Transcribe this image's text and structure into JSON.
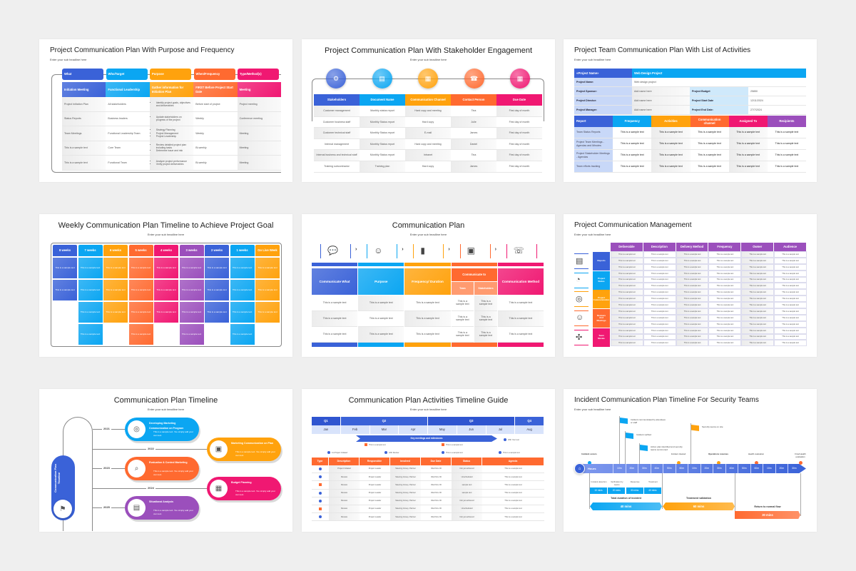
{
  "colors": {
    "blue": "#3a62d8",
    "sky": "#0ba6f2",
    "orange": "#ffa20d",
    "coral": "#ff6a30",
    "pink": "#f01872",
    "purple": "#9b4fbc",
    "lightblue": "#c8d8f8"
  },
  "slides": [
    {
      "title": "Project Communication Plan With Purpose and Frequency",
      "subtitle": "Enter your sub headline here",
      "headers": [
        "What",
        "Who/Target",
        "Purpose",
        "When/Frequency",
        "Type/Method(s)"
      ],
      "lead_row": [
        "Initiation Meeting",
        "Functional Leadership",
        "Gather information for Initiation Plan",
        "FIRST Before Project Start Date",
        "Meeting"
      ],
      "rows": [
        [
          "Project Initiation Plan",
          "All stakeholders",
          [
            "Identify project goals, objectives and deliverables"
          ],
          "Before start of project",
          "Project meeting"
        ],
        [
          "Status Reports",
          "Business leaders",
          [
            "Update stakeholders on progress of the project"
          ],
          "Weekly",
          "Conference meeting"
        ],
        [
          "Team Meetings",
          "Functional Leadership Team",
          [
            "Strategy Planning",
            "Project Management",
            "Project Leadership"
          ],
          "Weekly",
          "Meeting"
        ],
        [
          "This is a sample text",
          "Core Team",
          [
            "Review detailed project plan including tasks",
            "Determine issue and risk"
          ],
          "Bi-weekly",
          "Meeting"
        ],
        [
          "This is a sample text",
          "Functional Team",
          [
            "Analyze project performance",
            "Verify project deliverables"
          ],
          "Bi-weekly",
          "Meeting"
        ]
      ]
    },
    {
      "title": "Project Communication Plan With Stakeholder Engagement",
      "subtitle": "Enter your sub headline here",
      "icons": [
        "gears-icon",
        "document-icon",
        "presentation-icon",
        "contact-book-icon",
        "calendar-icon"
      ],
      "headers": [
        "Stakeholders",
        "Document Name",
        "Communication Channel",
        "Contact Person",
        "Due Date"
      ],
      "rows": [
        [
          "Customer management",
          "Monthly status report",
          "Hard copy and meeting",
          "Tina",
          "First day of month"
        ],
        [
          "Customer business staff",
          "Monthly Status report",
          "Hard copy",
          "Julie",
          "First day of month"
        ],
        [
          "Customer technical staff",
          "Monthly Status report",
          "E-mail",
          "James",
          "First day of month"
        ],
        [
          "Internal management",
          "Monthly Status report",
          "Hard copy and meeting",
          "Daniel",
          "First day of month"
        ],
        [
          "Internal business and technical staff",
          "Monthly Status report",
          "Intranet",
          "Tina",
          "First day of month"
        ],
        [
          "Training subcontractor",
          "Training plan",
          "Hard copy",
          "James",
          "First day of month"
        ]
      ]
    },
    {
      "title": "Project Team Communication Plan With List of Activities",
      "subtitle": "Enter your sub headline here",
      "info": {
        "project_label": "«Project Name»",
        "project_value": "Web Design Project",
        "name_label": "Project Name:",
        "name_value": "Web design project",
        "pairs": [
          [
            "Project Sponsor:",
            "Add name here",
            "Project Budget",
            "25850"
          ],
          [
            "Project Director:",
            "Add name here",
            "Project Start Date",
            "12/11/2024"
          ],
          [
            "Project Manager:",
            "Add name here",
            "Project End Date:",
            "27/7/2024"
          ]
        ]
      },
      "headers": [
        "Report",
        "Frequency",
        "Activities",
        "Communication channel",
        "Assigned To",
        "Recipients"
      ],
      "rows": [
        "Team Status Reports",
        "Project Team Meetings - Agendas and Minutes",
        "Project Stakeholder Meetings - Agendas",
        "Team efforts tracking"
      ],
      "cell": "This is a sample text"
    },
    {
      "title": "Weekly Communication Plan Timeline to Achieve Project Goal",
      "subtitle": "Enter your sub headline here",
      "weeks": [
        {
          "label": "8 weeks",
          "count": 2,
          "color": "blue"
        },
        {
          "label": "7 weeks",
          "count": 4,
          "color": "sky"
        },
        {
          "label": "6 weeks",
          "count": 3,
          "color": "orange"
        },
        {
          "label": "5 weeks",
          "count": 4,
          "color": "coral"
        },
        {
          "label": "4 weeks",
          "count": 3,
          "color": "pink"
        },
        {
          "label": "3 weeks",
          "count": 4,
          "color": "purple"
        },
        {
          "label": "2 weeks",
          "count": 3,
          "color": "blue"
        },
        {
          "label": "1 weeks",
          "count": 4,
          "color": "sky"
        },
        {
          "label": "Go Live Week",
          "count": 3,
          "color": "orange"
        }
      ],
      "cell": "This is a sample text"
    },
    {
      "title": "Communication Plan",
      "subtitle": "Enter your sub headline here",
      "icons": [
        "chat-bubbles-icon",
        "person-idea-icon",
        "bar-levels-icon",
        "video-call-icon",
        "phone-network-icon"
      ],
      "headers": [
        "Communicate What",
        "Purpose",
        "Frequency/ Duration",
        "Communicate to",
        "Communication Method"
      ],
      "subheaders": [
        "Team",
        "Stakeholders"
      ],
      "cell": "This is a sample text",
      "rowcount": 3
    },
    {
      "title": "Project Communication Management",
      "subtitle": "Enter your sub headline here",
      "headers": [
        "Deliverable",
        "Description",
        "Delivery Method",
        "Frequency",
        "Owner",
        "Audience"
      ],
      "groups": [
        {
          "label": "Reports",
          "color": "blue",
          "icon": "report-icon"
        },
        {
          "label": "Project Status",
          "color": "sky",
          "icon": "status-icon"
        },
        {
          "label": "Project Communication",
          "color": "orange",
          "icon": "target-gear-icon"
        },
        {
          "label": "Reviews And Meetings",
          "color": "coral",
          "icon": "meeting-icon"
        },
        {
          "label": "Team Morale",
          "color": "pink",
          "icon": "team-icon"
        }
      ],
      "cell": "This is a sample text"
    },
    {
      "title": "Communication Plan Timeline",
      "subtitle": "Enter your sub headline here",
      "side_label": "Communication Plan Timeline",
      "items": [
        {
          "year": "2021",
          "title": "Developing Marketing Communication on Program",
          "text": "This is a sample text. You simply add your own text.",
          "color": "sky",
          "icon": "target-icon"
        },
        {
          "year": "2022",
          "title": "Marketing Communication on Plan",
          "text": "This is a sample text. You simply add your own text.",
          "color": "orange",
          "icon": "monitor-plan-icon"
        },
        {
          "year": "2023",
          "title": "Evaluation & Control Marketing",
          "text": "This is a sample text. You simply add your own text.",
          "color": "coral",
          "icon": "magnifier-doc-icon"
        },
        {
          "year": "2024",
          "title": "Budget Planning",
          "text": "This is a sample text. You simply add your own text.",
          "color": "pink",
          "icon": "calculator-icon"
        },
        {
          "year": "2025",
          "title": "Situational Analysis",
          "text": "This is a sample text. You simply add your own text.",
          "color": "purple",
          "icon": "board-icon"
        }
      ]
    },
    {
      "title": "Communication Plan Activities Timeline Guide",
      "subtitle": "Enter your sub headline here",
      "quarters": [
        {
          "label": "Q1",
          "span": 1
        },
        {
          "label": "Q2",
          "span": 3
        },
        {
          "label": "Q3",
          "span": 3
        },
        {
          "label": "Q4",
          "span": 1
        }
      ],
      "months": [
        "Jan",
        "Feb",
        "Mar",
        "Apr",
        "May",
        "Jun",
        "Jul",
        "Aug"
      ],
      "banner": "Key meetings and milestones",
      "milestones": [
        {
          "text": "25th Your text",
          "type": "circle"
        },
        {
          "text": "This is a sample text",
          "type": "square"
        },
        {
          "text": "This is a sample text",
          "type": "square"
        },
        {
          "text": "1st Project Initiated",
          "type": "circle"
        },
        {
          "text": "22th Review",
          "type": "circle"
        },
        {
          "text": "This is a sample text",
          "type": "circle"
        },
        {
          "text": "This is a sample text",
          "type": "circle"
        }
      ],
      "headers": [
        "Type",
        "Description",
        "Responsible",
        "Involved",
        "Due Date",
        "Status",
        "Agenda"
      ],
      "rows": [
        [
          "circle",
          "Project Initiated",
          "Project Leader",
          "Steering Group, Partner",
          "Wed Nov 30",
          "Not yet achieved",
          "This is a sample text"
        ],
        [
          "circle",
          "Review",
          "Project Leader",
          "Steering Group, Partner",
          "Wed Nov 30",
          "Unscheduled",
          "This is a sample text"
        ],
        [
          "square",
          "Review",
          "Project Leader",
          "Steering Group, Partner",
          "Wed Nov 30",
          "sample text",
          "This is a sample text"
        ],
        [
          "circle",
          "Review",
          "Project Leader",
          "Steering Group, Partner",
          "Wed Nov 30",
          "sample text",
          "This is a sample text"
        ],
        [
          "circle",
          "Review",
          "Project Leader",
          "Steering Group, Partner",
          "Wed Nov 30",
          "Not yet achieved",
          "This is a sample text"
        ],
        [
          "square",
          "Review",
          "Project Leader",
          "Steering Group, Partner",
          "Wed Nov 30",
          "Unscheduled",
          "This is a sample text"
        ],
        [
          "circle",
          "Review",
          "Project Leader",
          "Steering Group, Partner",
          "Wed Nov 30",
          "Not yet achieved",
          "This is a sample text"
        ]
      ]
    },
    {
      "title": "Incident Communication Plan Timeline For Security Teams",
      "subtitle": "Enter your sub headline here",
      "flags": [
        {
          "text": "Incident communicated by attendees or staff",
          "color": "sky"
        },
        {
          "text": "Incident verified",
          "color": "sky"
        },
        {
          "text": "Action plan identified and security teams summoned",
          "color": "sky"
        },
        {
          "text": "Security teams on site",
          "color": "orange"
        }
      ],
      "events": [
        {
          "text": "Incident occurs",
          "bold": true,
          "color": "sky"
        },
        {
          "text": "Incident cleared",
          "bold": false,
          "color": "orange"
        },
        {
          "text": "Operations resumes",
          "bold": true,
          "color": "orange"
        },
        {
          "text": "Health evaluation",
          "bold": false,
          "color": "coral"
        },
        {
          "text": "Final Health evaluation",
          "bold": false,
          "color": "coral"
        }
      ],
      "axis_label": "Hours",
      "ticks": [
        "10m",
        "20m",
        "30m",
        "40m",
        "50m",
        "60m",
        "10m",
        "20m",
        "30m",
        "40m",
        "50m",
        "60m",
        "10m",
        "20m",
        "30m"
      ],
      "phases": [
        [
          "Incident detection",
          "10 mins"
        ],
        [
          "Verification by teams",
          "20 mins"
        ],
        [
          "Response",
          "30 mins"
        ],
        [
          "Treatment",
          "40 mins"
        ]
      ],
      "totals": [
        {
          "label": "Total duration of incident",
          "value": "40 mins",
          "color": "sky"
        },
        {
          "label": "Treatment validation",
          "value": "60 mins",
          "color": "orange"
        },
        {
          "label": "Return to normal flow",
          "value": "30 mins",
          "color": "coral"
        }
      ]
    }
  ]
}
